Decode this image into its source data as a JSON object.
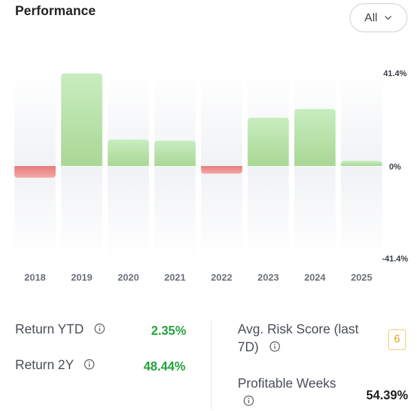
{
  "header": {
    "title": "Performance",
    "range_select": {
      "value": "All"
    }
  },
  "chart_data": {
    "type": "bar",
    "categories": [
      "2018",
      "2019",
      "2020",
      "2021",
      "2022",
      "2023",
      "2024",
      "2025"
    ],
    "values": [
      -5.2,
      41.4,
      11.8,
      11.3,
      -3.4,
      21.6,
      25.5,
      2.3
    ],
    "ylim": [
      -41.4,
      41.4
    ],
    "y_ticks": [
      "41.4%",
      "0%",
      "-41.4%"
    ],
    "colors": {
      "positive_top": "#c8edc0",
      "positive_bottom": "#a9d795",
      "negative_top": "#e57b7b",
      "negative_bottom": "#f5a9a9",
      "band": "#f1f3f6"
    }
  },
  "stats": {
    "return_ytd": {
      "label": "Return YTD",
      "value": "2.35%"
    },
    "return_2y": {
      "label": "Return 2Y",
      "value": "48.44%"
    },
    "risk_score": {
      "label_line1": "Avg. Risk Score (last",
      "label_line2": "7D)",
      "value": "6"
    },
    "profitable_weeks": {
      "label": "Profitable Weeks",
      "value": "54.39%"
    },
    "colors": {
      "positive": "#22a33a",
      "neutral": "#1f1f1f",
      "risk": "#e2a21a"
    }
  }
}
